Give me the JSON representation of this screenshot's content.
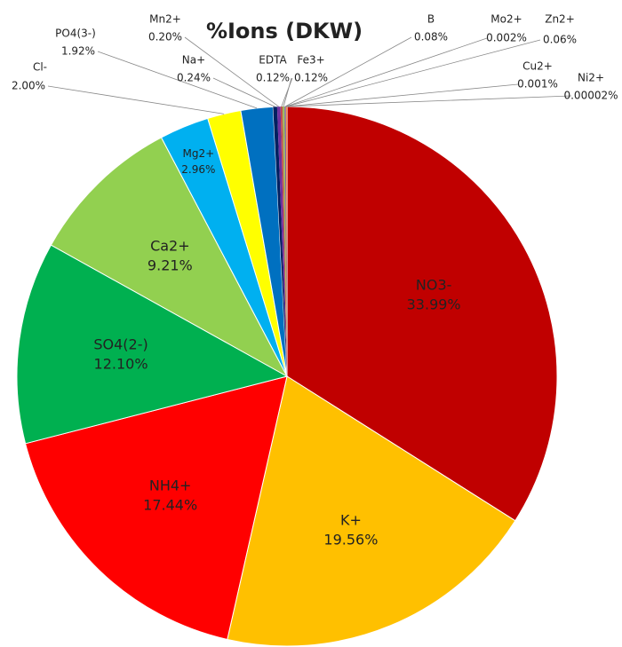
{
  "chart_data": {
    "type": "pie",
    "title": "%Ions (DKW)",
    "categories": [
      "NO3-",
      "K+",
      "NH4+",
      "SO4(2-)",
      "Ca2+",
      "Mg2+",
      "Cl-",
      "PO4(3-)",
      "Na+",
      "Mn2+",
      "EDTA",
      "Fe3+",
      "B",
      "Mo2+",
      "Zn2+",
      "Cu2+",
      "Ni2+"
    ],
    "values": [
      33.99,
      19.56,
      17.44,
      12.1,
      9.21,
      2.96,
      2.0,
      1.92,
      0.24,
      0.2,
      0.12,
      0.12,
      0.08,
      0.002,
      0.06,
      0.001,
      2e-05
    ],
    "value_labels": [
      "33.99%",
      "19.56%",
      "17.44%",
      "12.10%",
      "9.21%",
      "2.96%",
      "2.00%",
      "1.92%",
      "0.24%",
      "0.20%",
      "0.12%",
      "0.12%",
      "0.08%",
      "0.002%",
      "0.06%",
      "0.001%",
      "0.00002%"
    ],
    "colors": [
      "#c00000",
      "#ffc000",
      "#ff0000",
      "#00b050",
      "#92d050",
      "#00b0f0",
      "#ffff00",
      "#0070c0",
      "#002060",
      "#7030a0",
      "#c0504d",
      "#9bbb59",
      "#8064a2",
      "#4bacc6",
      "#f79646",
      "#2c4d75",
      "#772c2a"
    ]
  }
}
